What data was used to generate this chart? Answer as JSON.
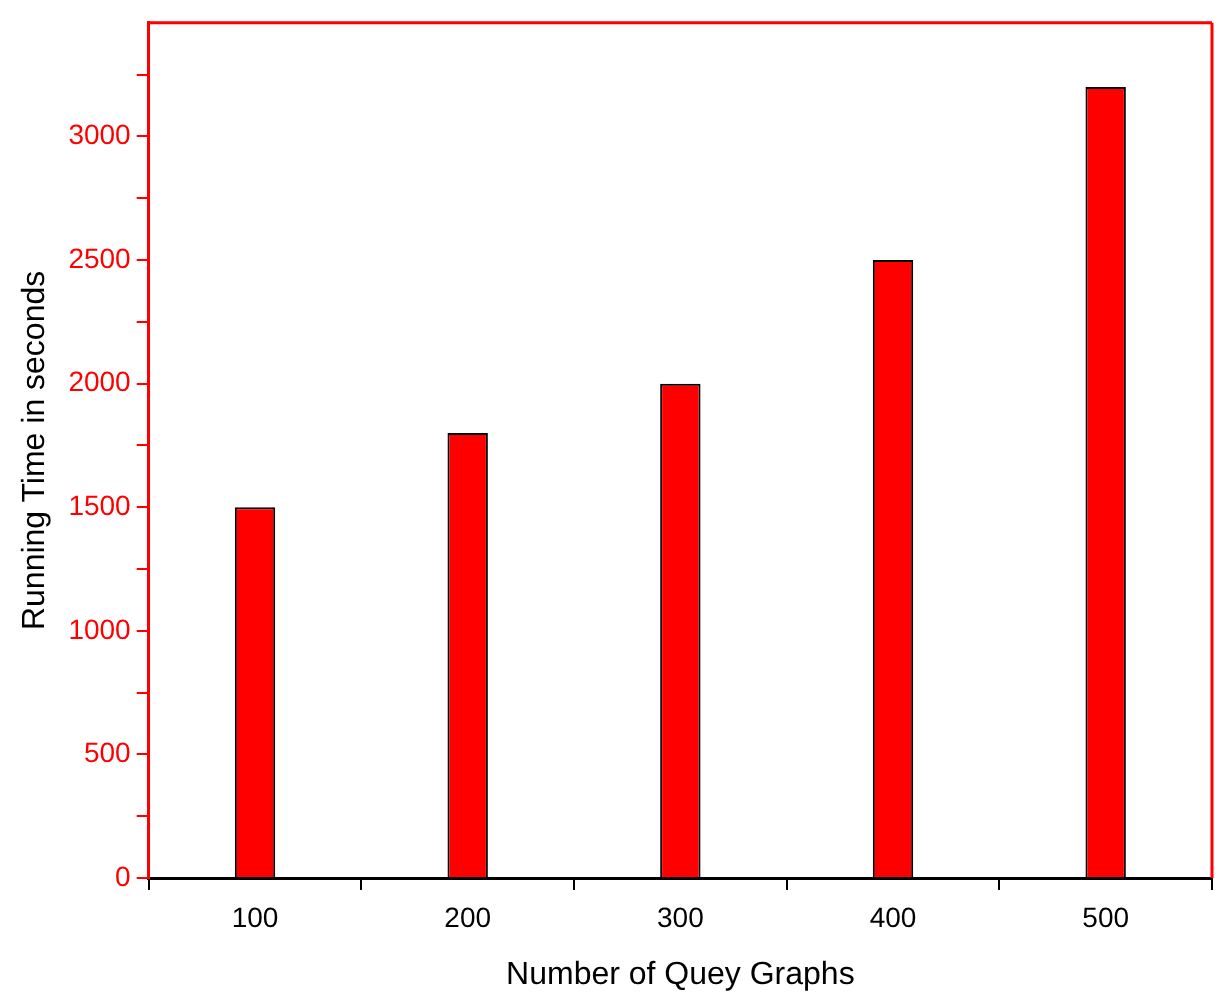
{
  "chart_data": {
    "type": "bar",
    "xlabel": "Number of Quey Graphs",
    "ylabel": "Running Time in seconds",
    "categories": [
      "100",
      "200",
      "300",
      "400",
      "500"
    ],
    "series": [
      {
        "color": "#ff0000",
        "values": [
          1500,
          1800,
          2000,
          2500,
          3200
        ]
      }
    ],
    "ylim": [
      0,
      3460
    ],
    "yticks": [
      0,
      {
        "value": 250,
        "label": null
      },
      500,
      {
        "value": 750,
        "label": null
      },
      1000,
      {
        "value": 1250,
        "label": null
      },
      1500,
      {
        "value": 1750,
        "label": null
      },
      2000,
      {
        "value": 2250,
        "label": null
      },
      2500,
      {
        "value": 2750,
        "label": null
      },
      3000,
      {
        "value": 3250,
        "label": null
      }
    ],
    "grid": false,
    "legend": false
  }
}
